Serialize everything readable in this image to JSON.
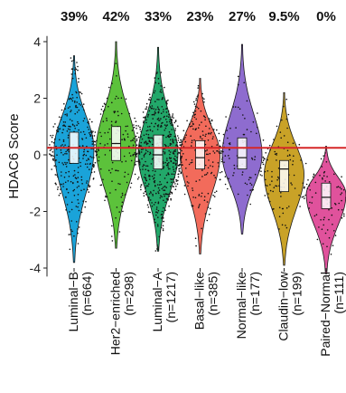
{
  "chart_data": {
    "type": "violin",
    "ylabel": "HDAC6 Score",
    "ylim": [
      -4.3,
      4.2
    ],
    "yticks": [
      "-4",
      "-2",
      "0",
      "2",
      "4"
    ],
    "reference_line": {
      "y": 0.25,
      "color": "#d62728"
    },
    "groups": [
      {
        "name": "Luminal−B",
        "n": "(n=664)",
        "percent": "39%",
        "color": "#1aa3d9",
        "min": -3.8,
        "q1": -0.3,
        "median": 0.25,
        "q3": 0.8,
        "max": 3.5,
        "mode": 0.2
      },
      {
        "name": "Her2−enriched",
        "n": "(n=298)",
        "percent": "42%",
        "color": "#5cc23b",
        "min": -3.3,
        "q1": -0.2,
        "median": 0.4,
        "q3": 1.0,
        "max": 4.0,
        "mode": 0.2
      },
      {
        "name": "Luminal−A",
        "n": "(n=1217)",
        "percent": "33%",
        "color": "#22a86a",
        "min": -3.4,
        "q1": -0.5,
        "median": 0.0,
        "q3": 0.7,
        "max": 3.8,
        "mode": 0.0
      },
      {
        "name": "Basal−like",
        "n": "(n=385)",
        "percent": "23%",
        "color": "#f26b5b",
        "min": -3.5,
        "q1": -0.5,
        "median": -0.1,
        "q3": 0.5,
        "max": 2.7,
        "mode": 0.0
      },
      {
        "name": "Normal−like",
        "n": "(n=177)",
        "percent": "27%",
        "color": "#8e6ccf",
        "min": -2.8,
        "q1": -0.5,
        "median": -0.1,
        "q3": 0.6,
        "max": 3.9,
        "mode": 0.0
      },
      {
        "name": "Claudin−low",
        "n": "(n=199)",
        "percent": "9.5%",
        "color": "#c9a227",
        "min": -3.9,
        "q1": -1.3,
        "median": -0.5,
        "q3": -0.2,
        "max": 2.2,
        "mode": -0.7
      },
      {
        "name": "Paired−Normal",
        "n": "(n=111)",
        "percent": "0%",
        "color": "#e0529c",
        "min": -4.2,
        "q1": -1.9,
        "median": -1.5,
        "q3": -1.0,
        "max": 0.3,
        "mode": -1.4
      }
    ]
  }
}
